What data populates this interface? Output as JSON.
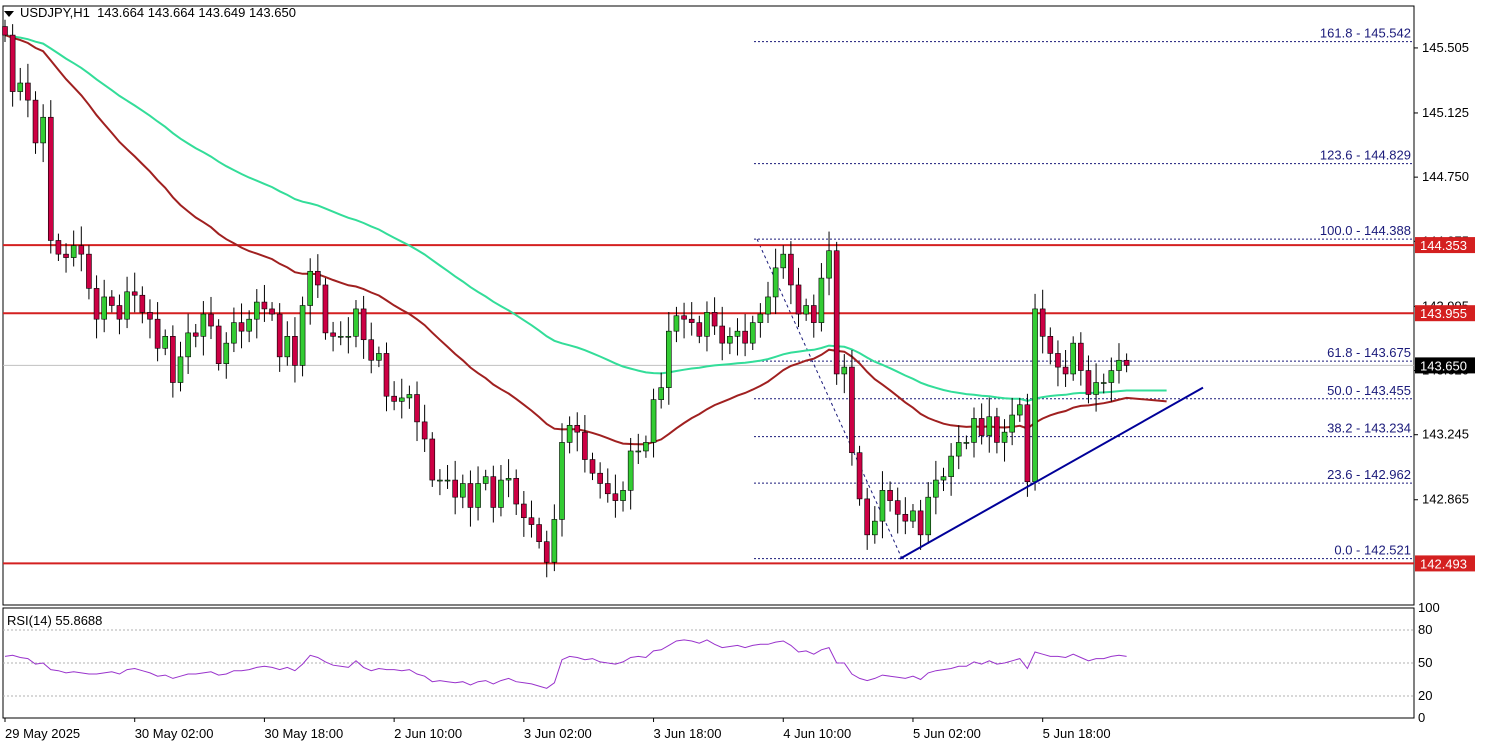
{
  "header": {
    "symbol": "USDJPY,H1",
    "open": "143.664",
    "high": "143.664",
    "low": "143.649",
    "close": "143.650"
  },
  "rsi_header": "RSI(14) 55.8688",
  "colors": {
    "up": "#33cc33",
    "down": "#cc0044",
    "resistance": "#d42020",
    "ma_fast": "#33dd99",
    "ma_slow": "#a02020",
    "trendline": "#000099",
    "fib": "#1a1a7a",
    "rsi": "#9933cc"
  },
  "chart_data": [
    {
      "type": "candlestick",
      "ylim": [
        142.25,
        145.75
      ],
      "price_ticks": [
        "145.505",
        "145.125",
        "144.750",
        "144.375",
        "143.995",
        "143.620",
        "143.245",
        "142.865"
      ],
      "x_ticks": [
        "29 May 2025",
        "30 May 02:00",
        "30 May 18:00",
        "2 Jun 10:00",
        "3 Jun 02:00",
        "3 Jun 18:00",
        "4 Jun 10:00",
        "5 Jun 02:00",
        "5 Jun 18:00"
      ],
      "horizontal_levels": [
        {
          "value": 144.353,
          "label": "144.353"
        },
        {
          "value": 143.955,
          "label": "143.955"
        },
        {
          "value": 142.493,
          "label": "142.493"
        }
      ],
      "current_price": {
        "value": 143.65,
        "label": "143.650"
      },
      "fibonacci": [
        {
          "value": 145.542,
          "label": "161.8 - 145.542"
        },
        {
          "value": 144.829,
          "label": "123.6 - 144.829"
        },
        {
          "value": 144.388,
          "label": "100.0 - 144.388"
        },
        {
          "value": 143.675,
          "label": "61.8 - 143.675"
        },
        {
          "value": 143.455,
          "label": "50.0 - 143.455"
        },
        {
          "value": 143.234,
          "label": "38.2 - 143.234"
        },
        {
          "value": 142.962,
          "label": "23.6 - 142.962"
        },
        {
          "value": 142.521,
          "label": "0.0 - 142.521"
        }
      ],
      "candles_close": [
        145.58,
        145.25,
        145.3,
        145.2,
        144.95,
        145.1,
        144.38,
        144.3,
        144.28,
        144.35,
        144.3,
        144.1,
        143.92,
        144.05,
        144.0,
        143.92,
        144.08,
        144.06,
        143.96,
        143.92,
        143.75,
        143.82,
        143.55,
        143.7,
        143.84,
        143.82,
        143.95,
        143.88,
        143.66,
        143.78,
        143.9,
        143.85,
        143.92,
        144.02,
        143.98,
        143.95,
        143.7,
        143.82,
        143.65,
        144.0,
        144.2,
        144.12,
        143.84,
        143.82,
        143.82,
        143.82,
        143.98,
        143.8,
        143.68,
        143.72,
        143.47,
        143.44,
        143.46,
        143.48,
        143.32,
        143.22,
        142.98,
        142.98,
        142.98,
        142.88,
        142.96,
        142.82,
        142.96,
        143.0,
        142.82,
        142.98,
        142.99,
        142.84,
        142.76,
        142.72,
        142.62,
        142.5,
        142.75,
        143.2,
        143.3,
        143.26,
        143.1,
        143.02,
        142.96,
        142.9,
        142.86,
        142.92,
        143.15,
        143.15,
        143.2,
        143.45,
        143.52,
        143.85,
        143.94,
        143.92,
        143.9,
        143.82,
        143.96,
        143.88,
        143.78,
        143.82,
        143.85,
        143.78,
        143.9,
        143.95,
        144.05,
        144.22,
        144.3,
        144.12,
        143.95,
        144.0,
        143.9,
        144.16,
        144.32,
        143.6,
        143.64,
        143.14,
        142.87,
        142.66,
        142.74,
        142.92,
        142.86,
        142.78,
        142.74,
        142.8,
        142.66,
        142.88,
        142.98,
        143.0,
        143.12,
        143.2,
        143.2,
        143.34,
        143.24,
        143.35,
        143.2,
        143.26,
        143.36,
        143.42,
        142.97,
        143.98,
        143.82,
        143.72,
        143.64,
        143.6,
        143.78,
        143.62,
        143.48,
        143.55,
        143.55,
        143.62,
        143.68,
        143.65
      ]
    },
    {
      "type": "line",
      "title": "RSI(14) 55.8688",
      "ylim": [
        0,
        100
      ],
      "y_ticks": [
        "100",
        "80",
        "50",
        "20",
        "0"
      ],
      "levels": [
        80,
        50,
        20
      ],
      "values": [
        56,
        57,
        55,
        54,
        49,
        50,
        44,
        43,
        41,
        42,
        41,
        40,
        40,
        41,
        42,
        40,
        44,
        45,
        43,
        41,
        38,
        39,
        36,
        38,
        40,
        40,
        41,
        42,
        39,
        40,
        43,
        43,
        44,
        46,
        47,
        46,
        44,
        46,
        43,
        49,
        57,
        55,
        51,
        48,
        47,
        46,
        52,
        46,
        43,
        45,
        44,
        44,
        43,
        44,
        40,
        38,
        33,
        34,
        33,
        32,
        33,
        30,
        33,
        34,
        31,
        34,
        36,
        33,
        32,
        31,
        29,
        27,
        32,
        53,
        56,
        55,
        53,
        54,
        51,
        50,
        49,
        51,
        55,
        56,
        55,
        61,
        62,
        66,
        70,
        71,
        70,
        68,
        71,
        67,
        64,
        65,
        66,
        64,
        66,
        67,
        67,
        69,
        70,
        66,
        60,
        61,
        58,
        62,
        64,
        50,
        50,
        40,
        36,
        34,
        36,
        39,
        38,
        37,
        36,
        38,
        35,
        41,
        43,
        44,
        45,
        47,
        47,
        51,
        49,
        52,
        49,
        50,
        52,
        54,
        45,
        60,
        58,
        56,
        56,
        55,
        58,
        55,
        52,
        54,
        54,
        56,
        57,
        56
      ]
    }
  ]
}
